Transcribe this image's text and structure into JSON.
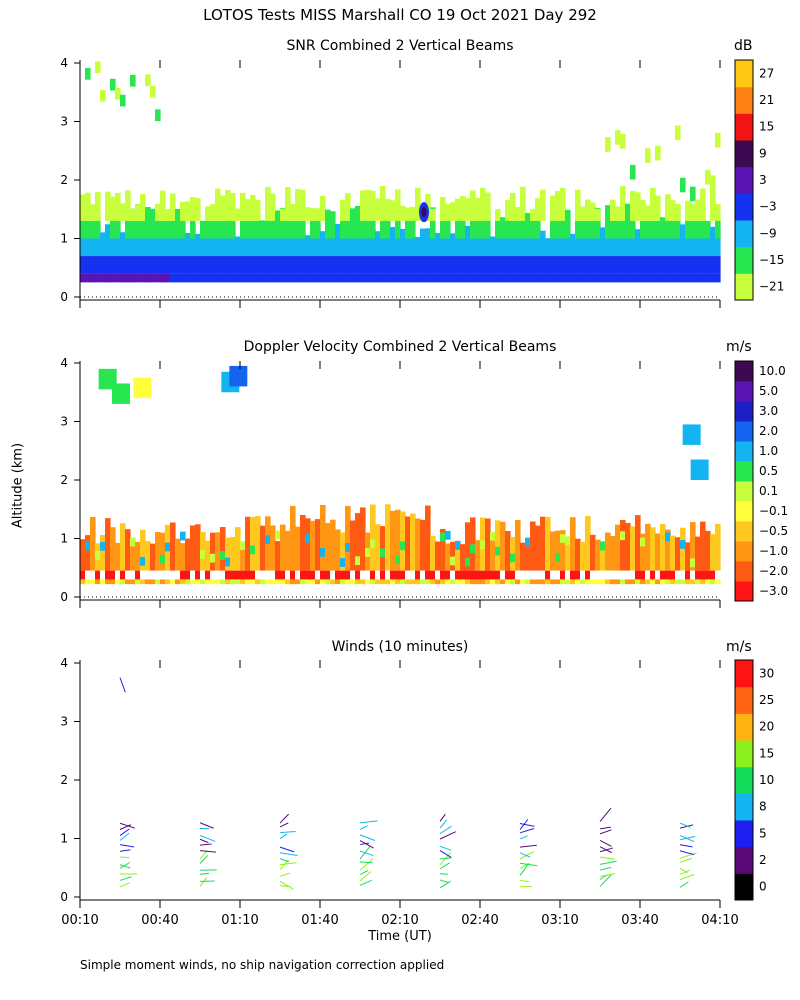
{
  "page_title": "LOTOS Tests MISS Marshall CO  19 Oct 2021 Day 292",
  "y_axis_label": "Altitude (km)",
  "x_axis_label": "Time (UT)",
  "footnote": "Simple moment winds, no ship navigation correction applied",
  "x_ticks": [
    "00:10",
    "00:40",
    "01:10",
    "01:40",
    "02:10",
    "02:40",
    "03:10",
    "03:40",
    "04:10"
  ],
  "x_range_minutes": [
    10,
    250
  ],
  "y_ticks": [
    "0",
    "1",
    "2",
    "3",
    "4"
  ],
  "y_range_km": [
    0,
    4
  ],
  "colors": {
    "snr": [
      "#c8ff3c",
      "#28e650",
      "#14b4f0",
      "#1432f0",
      "#5a14b4",
      "#3c0a50",
      "#f01414",
      "#ff8214",
      "#ffc814"
    ],
    "velocity": [
      "#ff1414",
      "#ff5a14",
      "#ff9614",
      "#ffc81e",
      "#ffff3c",
      "#c8ff3c",
      "#28e650",
      "#14b4f0",
      "#1464f0",
      "#1e1ec8",
      "#5a14b4",
      "#3c0a50"
    ],
    "winds": [
      "#000000",
      "#5a0a78",
      "#1e1ef0",
      "#14b4f0",
      "#14dc5a",
      "#8cf01e",
      "#ffb414",
      "#ff6414",
      "#ff1414"
    ]
  },
  "chart_data": [
    {
      "type": "heatmap",
      "title": "SNR Combined 2 Vertical Beams",
      "units": "dB",
      "colorbar_ticks": [
        "27",
        "21",
        "15",
        "9",
        "3",
        "−3",
        "−9",
        "−15",
        "−21"
      ],
      "xlabel": "",
      "ylabel": "Altitude (km)",
      "xlim": [
        "00:10",
        "04:10"
      ],
      "ylim": [
        0,
        4
      ]
    },
    {
      "type": "heatmap",
      "title": "Doppler Velocity Combined 2 Vertical Beams",
      "units": "m/s",
      "colorbar_ticks": [
        "10.0",
        "5.0",
        "3.0",
        "2.0",
        "1.0",
        "0.5",
        "0.1",
        "−0.1",
        "−0.5",
        "−1.0",
        "−2.0",
        "−3.0"
      ],
      "xlabel": "",
      "ylabel": "Altitude (km)",
      "xlim": [
        "00:10",
        "04:10"
      ],
      "ylim": [
        0,
        4
      ]
    },
    {
      "type": "scatter",
      "title": "Winds (10 minutes)",
      "units": "m/s",
      "colorbar_ticks": [
        "30",
        "25",
        "20",
        "15",
        "10",
        "8",
        "5",
        "2",
        "0"
      ],
      "xlabel": "Time (UT)",
      "ylabel": "Altitude (km)",
      "xlim": [
        "00:10",
        "04:10"
      ],
      "ylim": [
        0,
        4
      ],
      "profile_times_minutes": [
        25,
        55,
        85,
        115,
        145,
        175,
        205,
        235
      ]
    }
  ]
}
